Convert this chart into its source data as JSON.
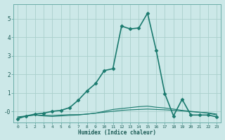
{
  "title": "",
  "xlabel": "Humidex (Indice chaleur)",
  "ylabel": "",
  "bg_color": "#cce8e8",
  "grid_color": "#aad0cc",
  "line_color": "#1a7a6e",
  "x_ticks": [
    0,
    1,
    2,
    3,
    4,
    5,
    6,
    7,
    8,
    9,
    10,
    11,
    12,
    13,
    14,
    15,
    16,
    17,
    18,
    19,
    20,
    21,
    22,
    23
  ],
  "y_ticks": [
    0,
    1,
    2,
    3,
    4,
    5
  ],
  "y_tick_labels": [
    "-0",
    "1",
    "2",
    "3",
    "4",
    "5"
  ],
  "ylim": [
    -0.6,
    5.8
  ],
  "xlim": [
    -0.5,
    23.5
  ],
  "series": [
    {
      "x": [
        0,
        1,
        2,
        3,
        4,
        5,
        6,
        7,
        8,
        9,
        10,
        11,
        12,
        13,
        14,
        15,
        16,
        17,
        18,
        19,
        20,
        21,
        22,
        23
      ],
      "y": [
        -0.3,
        -0.25,
        -0.2,
        -0.22,
        -0.22,
        -0.2,
        -0.18,
        -0.18,
        -0.15,
        -0.1,
        -0.05,
        0.0,
        0.05,
        0.08,
        0.1,
        0.12,
        0.1,
        0.08,
        0.05,
        0.02,
        -0.02,
        -0.05,
        -0.08,
        -0.15
      ],
      "marker": null,
      "lw": 0.8
    },
    {
      "x": [
        0,
        1,
        2,
        3,
        4,
        5,
        6,
        7,
        8,
        9,
        10,
        11,
        12,
        13,
        14,
        15,
        16,
        17,
        18,
        19,
        20,
        21,
        22,
        23
      ],
      "y": [
        -0.35,
        -0.25,
        -0.2,
        -0.25,
        -0.28,
        -0.25,
        -0.22,
        -0.2,
        -0.15,
        -0.1,
        0.0,
        0.1,
        0.15,
        0.2,
        0.25,
        0.28,
        0.22,
        0.18,
        0.12,
        0.05,
        0.0,
        -0.05,
        -0.1,
        -0.2
      ],
      "marker": null,
      "lw": 0.8
    },
    {
      "x": [
        0,
        1,
        2,
        3,
        4,
        5,
        6,
        7,
        8,
        9,
        10,
        11,
        12,
        13,
        14,
        15,
        16,
        17,
        18,
        19,
        20,
        21,
        22,
        23
      ],
      "y": [
        -0.4,
        -0.25,
        -0.15,
        -0.1,
        0.0,
        0.05,
        0.2,
        0.6,
        1.1,
        1.5,
        2.2,
        2.3,
        4.6,
        4.45,
        4.5,
        5.3,
        3.3,
        0.95,
        -0.25,
        0.65,
        -0.2,
        -0.2,
        -0.2,
        -0.3
      ],
      "marker": "D",
      "lw": 1.2
    }
  ]
}
